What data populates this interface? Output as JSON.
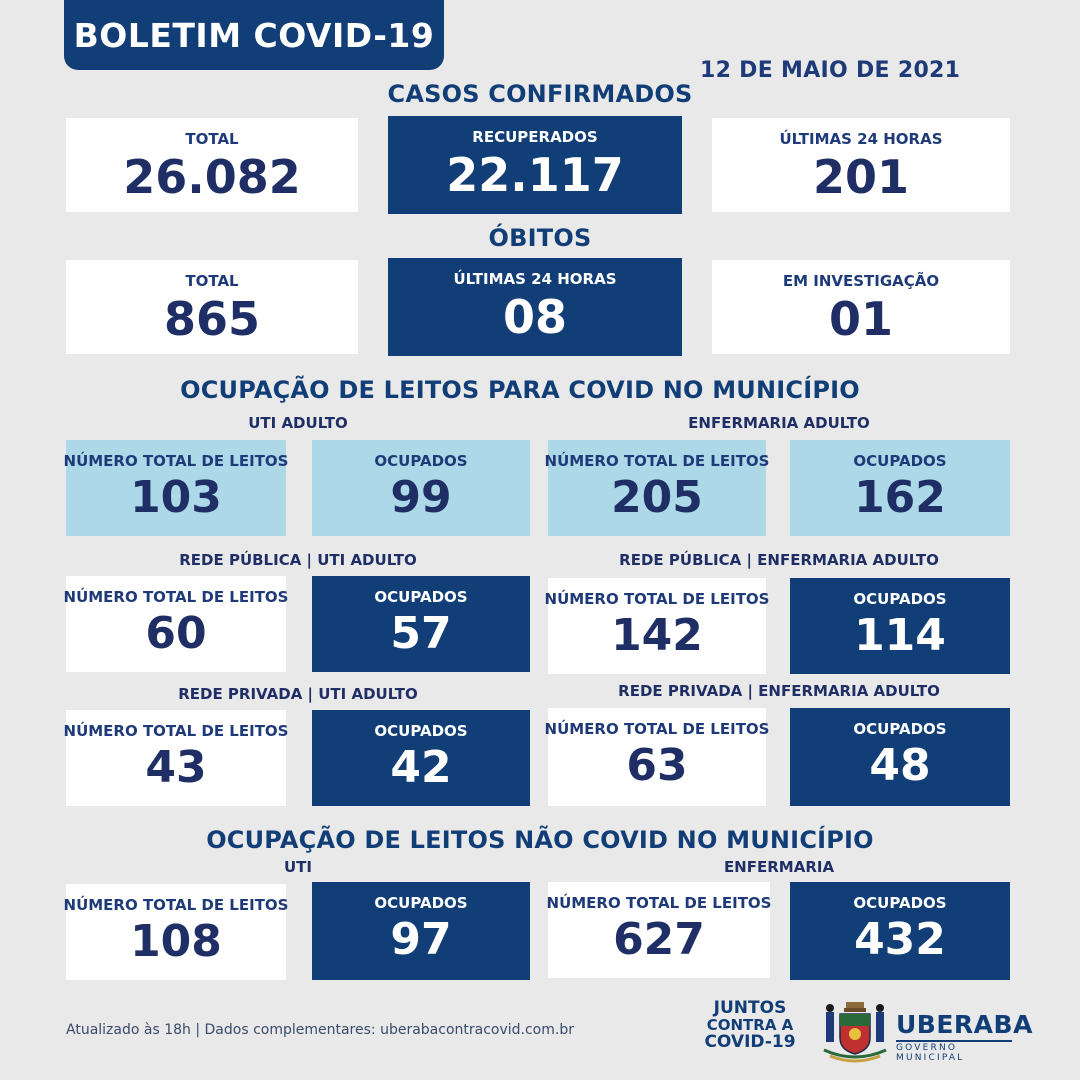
{
  "header": {
    "title": "BOLETIM COVID-19",
    "date": "12 DE MAIO DE 2021"
  },
  "casos": {
    "section": "CASOS CONFIRMADOS",
    "total_label": "TOTAL",
    "total": "26.082",
    "recuperados_label": "RECUPERADOS",
    "recuperados": "22.117",
    "ultimas_label": "ÚLTIMAS 24 HORAS",
    "ultimas": "201"
  },
  "obitos": {
    "section": "ÓBITOS",
    "total_label": "TOTAL",
    "total": "865",
    "ultimas_label": "ÚLTIMAS 24 HORAS",
    "ultimas": "08",
    "investigacao_label": "EM INVESTIGAÇÃO",
    "investigacao": "01"
  },
  "leitos_covid": {
    "section": "OCUPAÇÃO DE LEITOS PARA COVID NO MUNICÍPIO",
    "total_label": "NÚMERO TOTAL DE LEITOS",
    "ocupados_label": "OCUPADOS",
    "uti": {
      "title": "UTI ADULTO",
      "total": "103",
      "ocupados": "99"
    },
    "enf": {
      "title": "ENFERMARIA ADULTO",
      "total": "205",
      "ocupados": "162"
    },
    "pub_uti": {
      "title": "REDE PÚBLICA | UTI ADULTO",
      "total": "60",
      "ocupados": "57"
    },
    "pub_enf": {
      "title": "REDE PÚBLICA | ENFERMARIA ADULTO",
      "total": "142",
      "ocupados": "114"
    },
    "priv_uti": {
      "title": "REDE PRIVADA | UTI ADULTO",
      "total": "43",
      "ocupados": "42"
    },
    "priv_enf": {
      "title": "REDE PRIVADA | ENFERMARIA ADULTO",
      "total": "63",
      "ocupados": "48"
    }
  },
  "leitos_nao_covid": {
    "section": "OCUPAÇÃO DE LEITOS NÃO COVID NO MUNICÍPIO",
    "uti": {
      "title": "UTI",
      "total": "108",
      "ocupados": "97"
    },
    "enf": {
      "title": "ENFERMARIA",
      "total": "627",
      "ocupados": "432"
    }
  },
  "footer": {
    "text": "Atualizado às 18h | Dados complementares: uberabacontracovid.com.br",
    "juntos_1": "JUNTOS",
    "juntos_2": "CONTRA A",
    "juntos_3": "COVID-19",
    "city": "UBERABA",
    "gov": "GOVERNO MUNICIPAL"
  }
}
